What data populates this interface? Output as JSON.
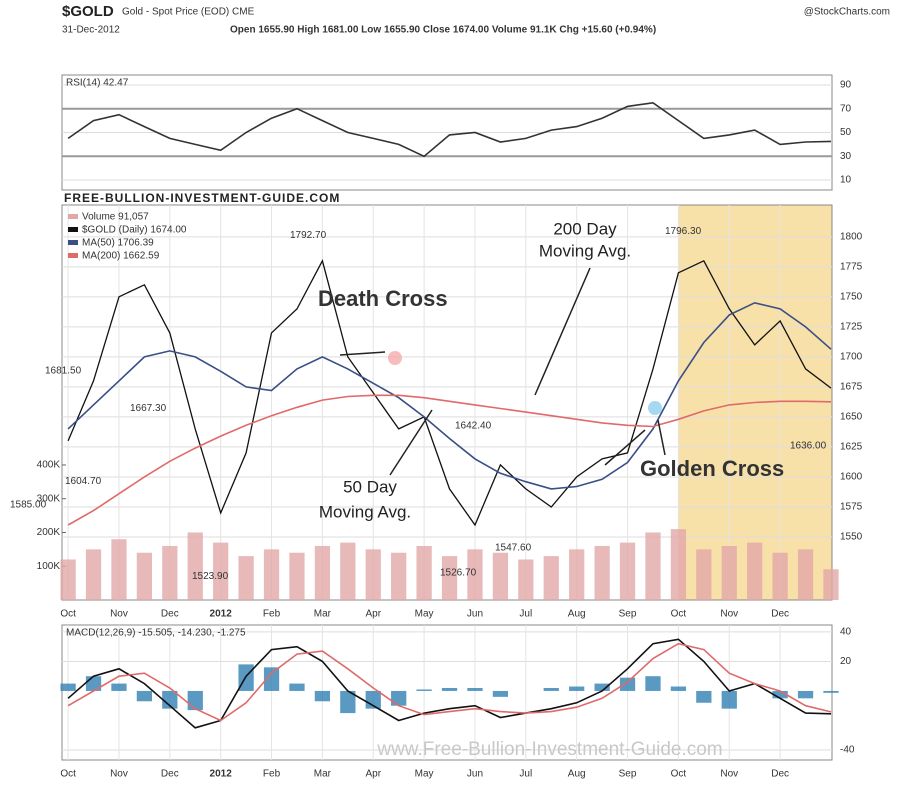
{
  "header": {
    "symbol": "$GOLD",
    "description": "Gold - Spot Price (EOD) CME",
    "source": "@StockCharts.com",
    "date": "31-Dec-2012",
    "quote": "Open 1655.90  High 1681.00  Low 1655.90  Close 1674.00  Volume 91.1K  Chg +15.60 (+0.94%)"
  },
  "chart_data": [
    {
      "type": "line",
      "label": "RSI(14) 42.47",
      "x": [
        0,
        0.5,
        1,
        1.5,
        2,
        2.5,
        3,
        3.5,
        4,
        4.5,
        5,
        5.5,
        6,
        6.5,
        7,
        7.5,
        8,
        8.5,
        9,
        9.5,
        10,
        10.5,
        11,
        11.5,
        12,
        12.5,
        13,
        13.5,
        14,
        14.5,
        15
      ],
      "xlim": [
        -0.12,
        15.02
      ],
      "ylim": [
        1.6,
        98.4
      ],
      "yticks": [
        10,
        30,
        50,
        70,
        90
      ],
      "bands": [
        30,
        70
      ],
      "series": [
        {
          "color": "#333333",
          "values": [
            45,
            60,
            65,
            55,
            45,
            40,
            35,
            50,
            62,
            70,
            60,
            50,
            45,
            40,
            30,
            48,
            50,
            42,
            45,
            52,
            55,
            62,
            72,
            75,
            60,
            45,
            48,
            52,
            40,
            42,
            42.47
          ]
        }
      ]
    },
    {
      "type": "line",
      "title": "FREE-BULLION-INVESTMENT-GUIDE.COM",
      "x": [
        0,
        0.5,
        1,
        1.5,
        2,
        2.5,
        3,
        3.5,
        4,
        4.5,
        5,
        5.5,
        6,
        6.5,
        7,
        7.5,
        8,
        8.5,
        9,
        9.5,
        10,
        10.5,
        11,
        11.5,
        12,
        12.5,
        13,
        13.5,
        14,
        14.5,
        15
      ],
      "xlim": [
        -0.12,
        15.02
      ],
      "xticks": [
        {
          "value": 0,
          "label": "Oct"
        },
        {
          "value": 1,
          "label": "Nov"
        },
        {
          "value": 2,
          "label": "Dec"
        },
        {
          "value": 3,
          "label": "2012"
        },
        {
          "value": 4,
          "label": "Feb"
        },
        {
          "value": 5,
          "label": "Mar"
        },
        {
          "value": 6,
          "label": "Apr"
        },
        {
          "value": 7,
          "label": "May"
        },
        {
          "value": 8,
          "label": "Jun"
        },
        {
          "value": 9,
          "label": "Jul"
        },
        {
          "value": 10,
          "label": "Aug"
        },
        {
          "value": 11,
          "label": "Sep"
        },
        {
          "value": 12,
          "label": "Oct"
        },
        {
          "value": 13,
          "label": "Nov"
        },
        {
          "value": 14,
          "label": "Dec"
        }
      ],
      "ylim": [
        1497.5,
        1826.5
      ],
      "yticks": [
        1550,
        1575,
        1600,
        1625,
        1650,
        1675,
        1700,
        1725,
        1750,
        1775,
        1800
      ],
      "y2lim": [
        0,
        1170
      ],
      "y2ticks": [
        {
          "value": 100,
          "label": "100K"
        },
        {
          "value": 200,
          "label": "200K"
        },
        {
          "value": 300,
          "label": "300K"
        },
        {
          "value": 400,
          "label": "400K"
        }
      ],
      "shaded_xrange": [
        12,
        15.02
      ],
      "shade_color": "#f7dc9a",
      "series": [
        {
          "name": "Volume 91,057",
          "type": "bar",
          "axis": "y2",
          "color": "#e2a8a8",
          "values": [
            120,
            150,
            180,
            140,
            160,
            200,
            170,
            130,
            150,
            140,
            160,
            170,
            150,
            140,
            160,
            130,
            150,
            140,
            120,
            130,
            150,
            160,
            170,
            200,
            210,
            150,
            160,
            170,
            140,
            150,
            91.057
          ]
        },
        {
          "name": "$GOLD (Daily) 1674.00",
          "color": "#111111",
          "values": [
            1630,
            1680,
            1750,
            1760,
            1720,
            1640,
            1570,
            1620,
            1720,
            1740,
            1780,
            1700,
            1670,
            1640,
            1650,
            1590,
            1560,
            1610,
            1590,
            1575,
            1600,
            1615,
            1620,
            1690,
            1770,
            1780,
            1740,
            1710,
            1730,
            1690,
            1674
          ]
        },
        {
          "name": "MA(50) 1706.39",
          "color": "#3a4f86",
          "values": [
            1640,
            1660,
            1680,
            1700,
            1705,
            1700,
            1688,
            1675,
            1672,
            1690,
            1700,
            1690,
            1678,
            1666,
            1650,
            1632,
            1615,
            1603,
            1596,
            1590,
            1592,
            1598,
            1612,
            1640,
            1680,
            1712,
            1735,
            1745,
            1740,
            1725,
            1706.39
          ]
        },
        {
          "name": "MA(200) 1662.59",
          "color": "#e06a6a",
          "values": [
            1560,
            1572,
            1586,
            1600,
            1613,
            1624,
            1634,
            1643,
            1651,
            1658,
            1664,
            1667,
            1668,
            1668,
            1666,
            1663,
            1660,
            1657,
            1654,
            1651,
            1648,
            1645,
            1643,
            1642,
            1648,
            1655,
            1660,
            1662,
            1663,
            1663,
            1662.59
          ]
        }
      ],
      "price_labels": [
        {
          "value": 1681.5,
          "label": "1681.50"
        },
        {
          "value": 1667.3,
          "label": "1667.30"
        },
        {
          "value": 1604.7,
          "label": "1604.70"
        },
        {
          "value": 1585,
          "label": "1585.00"
        },
        {
          "value": 1523.9,
          "label": "1523.90"
        },
        {
          "value": 1792.7,
          "label": "1792.70"
        },
        {
          "value": 1526.7,
          "label": "1526.70"
        },
        {
          "value": 1642.4,
          "label": "1642.40"
        },
        {
          "value": 1547.6,
          "label": "1547.60"
        },
        {
          "value": 1796.3,
          "label": "1796.30"
        },
        {
          "value": 1636,
          "label": "1636.00"
        }
      ],
      "annotations": [
        "Death Cross",
        "200 Day",
        "Moving Avg.",
        "50 Day",
        "Moving Avg.",
        "Golden Cross"
      ]
    },
    {
      "type": "line",
      "label": "MACD(12,26,9) -15.505, -14.230, -1.275",
      "watermark": "www.Free-Bullion-Investment-Guide.com",
      "x": [
        0,
        0.5,
        1,
        1.5,
        2,
        2.5,
        3,
        3.5,
        4,
        4.5,
        5,
        5.5,
        6,
        6.5,
        7,
        7.5,
        8,
        8.5,
        9,
        9.5,
        10,
        10.5,
        11,
        11.5,
        12,
        12.5,
        13,
        13.5,
        14,
        14.5,
        15
      ],
      "xlim": [
        -0.12,
        15.02
      ],
      "xticks": [
        {
          "value": 0,
          "label": "Oct"
        },
        {
          "value": 1,
          "label": "Nov"
        },
        {
          "value": 2,
          "label": "Dec"
        },
        {
          "value": 3,
          "label": "2012"
        },
        {
          "value": 4,
          "label": "Feb"
        },
        {
          "value": 5,
          "label": "Mar"
        },
        {
          "value": 6,
          "label": "Apr"
        },
        {
          "value": 7,
          "label": "May"
        },
        {
          "value": 8,
          "label": "Jun"
        },
        {
          "value": 9,
          "label": "Jul"
        },
        {
          "value": 10,
          "label": "Aug"
        },
        {
          "value": 11,
          "label": "Sep"
        },
        {
          "value": 12,
          "label": "Oct"
        },
        {
          "value": 13,
          "label": "Nov"
        },
        {
          "value": 14,
          "label": "Dec"
        }
      ],
      "ylim": [
        -46.8,
        44.7
      ],
      "yticks": [
        -40,
        20,
        40
      ],
      "series": [
        {
          "type": "bar",
          "color": "#2f7fb3",
          "values": [
            5,
            10,
            5,
            -7,
            -12,
            -13,
            0,
            18,
            16,
            5,
            -7,
            -15,
            -12,
            -10,
            1,
            2,
            2,
            -4,
            0,
            2,
            3,
            5,
            9,
            10,
            3,
            -8,
            -12,
            0,
            -5,
            -5,
            -1.275
          ]
        },
        {
          "color": "#111111",
          "values": [
            -5,
            10,
            15,
            5,
            -10,
            -25,
            -20,
            10,
            28,
            30,
            20,
            0,
            -10,
            -20,
            -15,
            -12,
            -10,
            -18,
            -15,
            -12,
            -8,
            0,
            15,
            32,
            35,
            20,
            0,
            5,
            -5,
            -15,
            -15.505
          ]
        },
        {
          "color": "#e06a6a",
          "values": [
            -10,
            0,
            10,
            12,
            2,
            -12,
            -20,
            -8,
            12,
            25,
            27,
            15,
            2,
            -10,
            -16,
            -14,
            -12,
            -14,
            -15,
            -14,
            -11,
            -5,
            6,
            22,
            32,
            28,
            12,
            5,
            0,
            -10,
            -14.23
          ]
        }
      ]
    }
  ]
}
